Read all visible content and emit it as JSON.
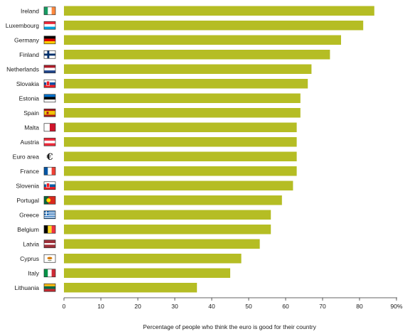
{
  "chart_data": {
    "type": "bar",
    "orientation": "horizontal",
    "categories": [
      "Ireland",
      "Luxembourg",
      "Germany",
      "Finland",
      "Netherlands",
      "Slovakia",
      "Estonia",
      "Spain",
      "Malta",
      "Austria",
      "Euro area",
      "France",
      "Slovenia",
      "Portugal",
      "Greece",
      "Belgium",
      "Latvia",
      "Cyprus",
      "Italy",
      "Lithuania"
    ],
    "values": [
      84,
      81,
      75,
      72,
      67,
      66,
      64,
      64,
      63,
      63,
      63,
      63,
      62,
      59,
      56,
      56,
      53,
      48,
      45,
      36
    ],
    "flags": [
      "ireland-flag-icon",
      "luxembourg-flag-icon",
      "germany-flag-icon",
      "finland-flag-icon",
      "netherlands-flag-icon",
      "slovakia-flag-icon",
      "estonia-flag-icon",
      "spain-flag-icon",
      "malta-flag-icon",
      "austria-flag-icon",
      "euro-symbol-icon",
      "france-flag-icon",
      "slovenia-flag-icon",
      "portugal-flag-icon",
      "greece-flag-icon",
      "belgium-flag-icon",
      "latvia-flag-icon",
      "cyprus-flag-icon",
      "italy-flag-icon",
      "lithuania-flag-icon"
    ],
    "euro_symbol": "€",
    "xlabel": "Percentage of people who think the euro is good for their country",
    "xlim": [
      0,
      90
    ],
    "xticks": [
      0,
      10,
      20,
      30,
      40,
      50,
      60,
      70,
      80,
      90
    ],
    "xtick_labels": [
      "0",
      "10",
      "20",
      "30",
      "40",
      "50",
      "60",
      "70",
      "80",
      "90%"
    ],
    "bar_color": "#b5bd24",
    "grid": false
  }
}
